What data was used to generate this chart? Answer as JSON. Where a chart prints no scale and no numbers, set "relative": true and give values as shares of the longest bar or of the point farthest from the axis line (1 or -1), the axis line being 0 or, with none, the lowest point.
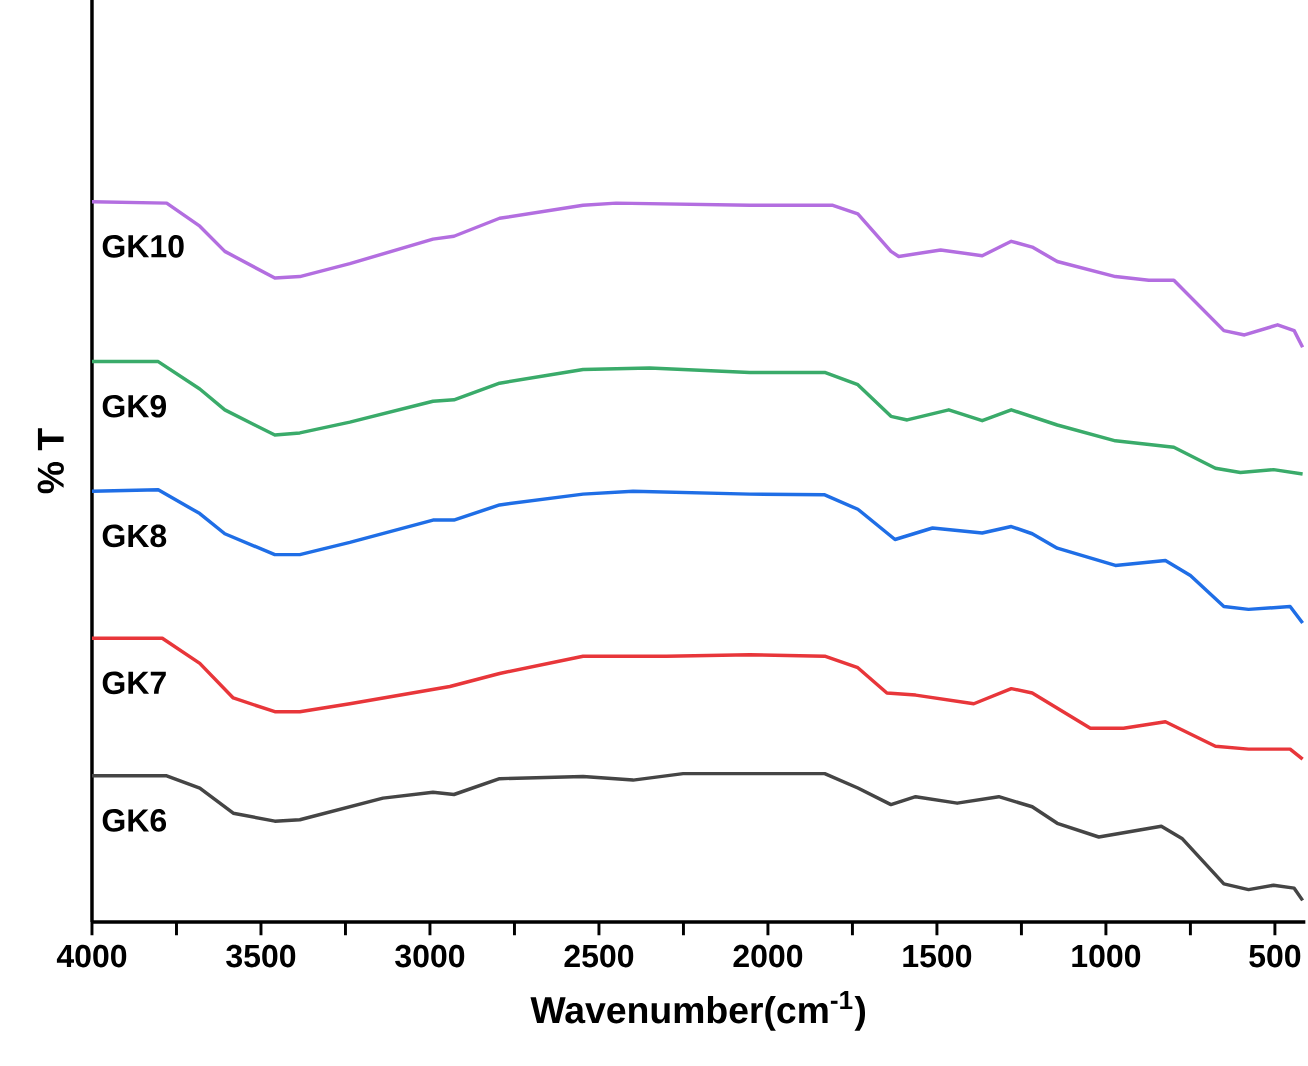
{
  "chart_data": {
    "type": "line",
    "relative": true,
    "xlabel": "Wavenumber(cm$^{-1}$)",
    "ylabel": "% T",
    "xlim": [
      4000,
      410
    ],
    "xticks": [
      4000,
      {
        "value": 3750,
        "label": null
      },
      3500,
      {
        "value": 3250,
        "label": null
      },
      3000,
      {
        "value": 2750,
        "label": null
      },
      2500,
      {
        "value": 2250,
        "label": null
      },
      2000,
      {
        "value": 1750,
        "label": null
      },
      1500,
      {
        "value": 1250,
        "label": null
      },
      1000,
      {
        "value": 750,
        "label": null
      },
      500
    ],
    "marker": "none",
    "line_style": "solid",
    "series": [
      {
        "name": "GK10",
        "color": "#b36ee0",
        "x": [
          4000,
          3779,
          3681,
          3607,
          3459,
          3385,
          3237,
          2991,
          2929,
          2794,
          2547,
          2449,
          2054,
          1808,
          1734,
          1636,
          1613,
          1489,
          1366,
          1280,
          1218,
          1144,
          972,
          873,
          799,
          725,
          651,
          590,
          492,
          443,
          418
        ],
        "values": [
          1.0,
          0.998,
          0.966,
          0.931,
          0.894,
          0.896,
          0.914,
          0.948,
          0.952,
          0.977,
          0.995,
          0.998,
          0.995,
          0.995,
          0.983,
          0.931,
          0.924,
          0.933,
          0.925,
          0.945,
          0.937,
          0.917,
          0.896,
          0.891,
          0.891,
          0.856,
          0.821,
          0.815,
          0.829,
          0.821,
          0.798
        ]
      },
      {
        "name": "GK9",
        "color": "#3aab6a",
        "x": [
          4000,
          3804,
          3681,
          3607,
          3459,
          3385,
          3237,
          2991,
          2929,
          2794,
          2547,
          2350,
          2054,
          1832,
          1734,
          1636,
          1588,
          1465,
          1366,
          1280,
          1144,
          972,
          799,
          676,
          602,
          504,
          418
        ],
        "values": [
          0.778,
          0.778,
          0.74,
          0.711,
          0.676,
          0.679,
          0.694,
          0.723,
          0.725,
          0.748,
          0.767,
          0.769,
          0.763,
          0.763,
          0.746,
          0.702,
          0.697,
          0.711,
          0.696,
          0.711,
          0.69,
          0.668,
          0.659,
          0.63,
          0.624,
          0.628,
          0.622
        ]
      },
      {
        "name": "GK8",
        "color": "#1f6ee6",
        "x": [
          4000,
          3804,
          3681,
          3607,
          3459,
          3385,
          3237,
          2991,
          2929,
          2794,
          2547,
          2399,
          2054,
          1832,
          1734,
          1624,
          1513,
          1366,
          1280,
          1218,
          1144,
          972,
          824,
          750,
          651,
          578,
          455,
          418
        ],
        "values": [
          0.598,
          0.6,
          0.567,
          0.539,
          0.51,
          0.51,
          0.527,
          0.558,
          0.558,
          0.579,
          0.594,
          0.598,
          0.594,
          0.593,
          0.573,
          0.531,
          0.547,
          0.54,
          0.549,
          0.539,
          0.519,
          0.495,
          0.502,
          0.481,
          0.438,
          0.434,
          0.438,
          0.415
        ]
      },
      {
        "name": "GK7",
        "color": "#e8363a",
        "x": [
          4000,
          3792,
          3681,
          3582,
          3459,
          3385,
          3237,
          2941,
          2794,
          2547,
          2300,
          2054,
          1832,
          1734,
          1648,
          1563,
          1391,
          1280,
          1218,
          1046,
          948,
          824,
          676,
          578,
          455,
          418
        ],
        "values": [
          0.394,
          0.394,
          0.359,
          0.311,
          0.292,
          0.292,
          0.303,
          0.327,
          0.345,
          0.369,
          0.369,
          0.371,
          0.369,
          0.353,
          0.318,
          0.315,
          0.303,
          0.324,
          0.318,
          0.269,
          0.269,
          0.278,
          0.244,
          0.24,
          0.24,
          0.226
        ]
      },
      {
        "name": "GK6",
        "color": "#454545",
        "x": [
          4000,
          3779,
          3681,
          3582,
          3459,
          3385,
          3139,
          2991,
          2929,
          2794,
          2547,
          2399,
          2251,
          1832,
          1734,
          1636,
          1563,
          1440,
          1317,
          1218,
          1144,
          1021,
          836,
          775,
          651,
          578,
          504,
          443,
          418
        ],
        "values": [
          0.203,
          0.203,
          0.186,
          0.151,
          0.14,
          0.142,
          0.172,
          0.18,
          0.177,
          0.199,
          0.202,
          0.197,
          0.206,
          0.206,
          0.186,
          0.163,
          0.174,
          0.165,
          0.174,
          0.16,
          0.137,
          0.118,
          0.133,
          0.116,
          0.053,
          0.045,
          0.051,
          0.047,
          0.03
        ]
      }
    ]
  }
}
